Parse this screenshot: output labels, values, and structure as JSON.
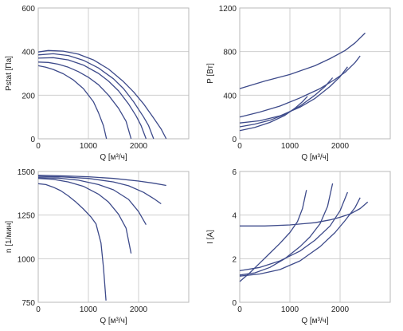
{
  "colors": {
    "line": "#3d4a8a",
    "grid": "#cfcfcf",
    "frame": "#b8b8b8"
  },
  "chart_data": [
    {
      "type": "line",
      "title": "",
      "xlabel": "Q [м³/ч]",
      "ylabel": "Pstat [Па]",
      "xlim": [
        0,
        3000
      ],
      "ylim": [
        0,
        600
      ],
      "x_ticks": [
        0,
        1000,
        2000
      ],
      "y_ticks": [
        0,
        200,
        400,
        600
      ],
      "grid": true,
      "series": [
        {
          "x": [
            0,
            150,
            300,
            500,
            700,
            900,
            1100,
            1200,
            1300,
            1360
          ],
          "y": [
            335,
            328,
            318,
            298,
            270,
            230,
            170,
            120,
            60,
            0
          ]
        },
        {
          "x": [
            0,
            200,
            400,
            600,
            800,
            1000,
            1200,
            1400,
            1600,
            1750,
            1850
          ],
          "y": [
            352,
            350,
            342,
            328,
            308,
            282,
            248,
            200,
            140,
            80,
            0
          ]
        },
        {
          "x": [
            0,
            300,
            600,
            900,
            1200,
            1400,
            1600,
            1800,
            1950,
            2050,
            2150
          ],
          "y": [
            370,
            372,
            362,
            338,
            300,
            265,
            220,
            160,
            105,
            60,
            0
          ]
        },
        {
          "x": [
            0,
            300,
            600,
            900,
            1200,
            1500,
            1700,
            1900,
            2100,
            2200,
            2300
          ],
          "y": [
            385,
            390,
            382,
            360,
            325,
            275,
            230,
            170,
            100,
            60,
            0
          ]
        },
        {
          "x": [
            0,
            200,
            500,
            800,
            1100,
            1400,
            1700,
            1900,
            2100,
            2300,
            2450,
            2550
          ],
          "y": [
            398,
            405,
            402,
            388,
            362,
            320,
            262,
            215,
            160,
            95,
            45,
            0
          ]
        }
      ]
    },
    {
      "type": "line",
      "title": "",
      "xlabel": "Q [м³/ч]",
      "ylabel": "P [Вт]",
      "xlim": [
        0,
        3000
      ],
      "ylim": [
        0,
        1200
      ],
      "x_ticks": [
        0,
        1000,
        2000
      ],
      "y_ticks": [
        0,
        400,
        800,
        1200
      ],
      "grid": true,
      "series": [
        {
          "x": [
            0,
            300,
            600,
            900,
            1100,
            1250,
            1350
          ],
          "y": [
            75,
            105,
            150,
            215,
            280,
            340,
            390
          ]
        },
        {
          "x": [
            0,
            300,
            600,
            900,
            1200,
            1500,
            1700,
            1850
          ],
          "y": [
            110,
            135,
            170,
            225,
            300,
            400,
            480,
            560
          ]
        },
        {
          "x": [
            0,
            400,
            800,
            1200,
            1500,
            1800,
            2000,
            2150
          ],
          "y": [
            145,
            165,
            210,
            290,
            370,
            480,
            570,
            660
          ]
        },
        {
          "x": [
            0,
            400,
            800,
            1200,
            1600,
            1900,
            2100,
            2300,
            2400
          ],
          "y": [
            200,
            245,
            300,
            375,
            460,
            545,
            610,
            700,
            760
          ]
        },
        {
          "x": [
            0,
            500,
            1000,
            1500,
            1800,
            2100,
            2300,
            2500
          ],
          "y": [
            460,
            530,
            590,
            670,
            735,
            810,
            880,
            970
          ]
        }
      ]
    },
    {
      "type": "line",
      "title": "",
      "xlabel": "Q [м³/ч]",
      "ylabel": "n [1/мин]",
      "xlim": [
        0,
        3000
      ],
      "ylim": [
        750,
        1500
      ],
      "x_ticks": [
        0,
        1000,
        2000
      ],
      "y_ticks": [
        750,
        1000,
        1250,
        1500
      ],
      "grid": true,
      "series": [
        {
          "x": [
            0,
            150,
            300,
            450,
            600,
            750,
            900,
            1050,
            1150,
            1250,
            1300,
            1350
          ],
          "y": [
            1430,
            1425,
            1410,
            1390,
            1360,
            1325,
            1285,
            1240,
            1200,
            1090,
            950,
            760
          ]
        },
        {
          "x": [
            0,
            300,
            600,
            900,
            1200,
            1400,
            1600,
            1750,
            1850
          ],
          "y": [
            1460,
            1455,
            1440,
            1415,
            1370,
            1325,
            1255,
            1175,
            1030
          ]
        },
        {
          "x": [
            0,
            400,
            800,
            1200,
            1500,
            1800,
            2000,
            2150
          ],
          "y": [
            1465,
            1462,
            1450,
            1425,
            1395,
            1340,
            1270,
            1195
          ]
        },
        {
          "x": [
            0,
            500,
            1000,
            1500,
            1800,
            2100,
            2300,
            2450
          ],
          "y": [
            1472,
            1469,
            1460,
            1440,
            1418,
            1380,
            1345,
            1315
          ]
        },
        {
          "x": [
            0,
            500,
            1000,
            1500,
            2000,
            2300,
            2550
          ],
          "y": [
            1478,
            1475,
            1470,
            1460,
            1445,
            1433,
            1420
          ]
        }
      ]
    },
    {
      "type": "line",
      "title": "",
      "xlabel": "Q [м³/ч]",
      "ylabel": "I [A]",
      "xlim": [
        0,
        3000
      ],
      "ylim": [
        0,
        6
      ],
      "x_ticks": [
        0,
        1000,
        2000
      ],
      "y_ticks": [
        0,
        2,
        4,
        6
      ],
      "grid": true,
      "series": [
        {
          "x": [
            0,
            200,
            400,
            600,
            800,
            1000,
            1150,
            1250,
            1330
          ],
          "y": [
            0.95,
            1.35,
            1.8,
            2.25,
            2.7,
            3.2,
            3.7,
            4.3,
            5.15
          ]
        },
        {
          "x": [
            0,
            300,
            600,
            900,
            1200,
            1400,
            1600,
            1750,
            1850
          ],
          "y": [
            1.25,
            1.35,
            1.6,
            2.0,
            2.55,
            3.0,
            3.6,
            4.4,
            5.45
          ]
        },
        {
          "x": [
            0,
            400,
            800,
            1200,
            1500,
            1800,
            2000,
            2150
          ],
          "y": [
            1.45,
            1.6,
            1.9,
            2.35,
            2.85,
            3.5,
            4.2,
            5.05
          ]
        },
        {
          "x": [
            0,
            400,
            800,
            1200,
            1600,
            1900,
            2100,
            2300,
            2400
          ],
          "y": [
            1.2,
            1.3,
            1.5,
            1.9,
            2.55,
            3.2,
            3.75,
            4.35,
            4.8
          ]
        },
        {
          "x": [
            0,
            500,
            1000,
            1500,
            1800,
            2000,
            2200,
            2400,
            2550
          ],
          "y": [
            3.5,
            3.5,
            3.55,
            3.65,
            3.78,
            3.9,
            4.05,
            4.3,
            4.6
          ]
        }
      ]
    }
  ]
}
